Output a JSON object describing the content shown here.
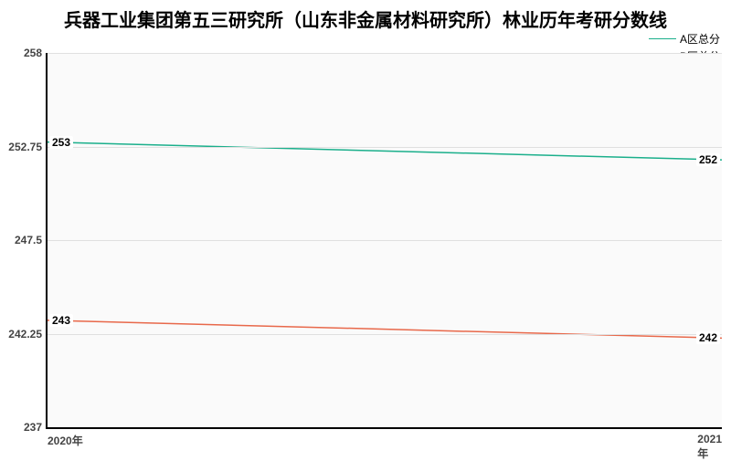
{
  "title": "兵器工业集团第五三研究所（山东非金属材料研究所）林业历年考研分数线",
  "title_fontsize": 20,
  "background_color": "#ffffff",
  "plot_background": "#fafafa",
  "axis_color": "#000000",
  "grid_color": "#e0e0e0",
  "text_color": "#444444",
  "x": {
    "categories": [
      "2020年",
      "2021年"
    ],
    "label_fontsize": 12
  },
  "y": {
    "min": 237,
    "max": 258,
    "ticks": [
      237,
      242.25,
      247.5,
      252.75,
      258
    ],
    "label_fontsize": 12
  },
  "series": [
    {
      "name": "A区总分",
      "color": "#1aaf8b",
      "line_width": 1.5,
      "values": [
        253,
        252
      ],
      "label_left": "253",
      "label_right": "252"
    },
    {
      "name": "B区总分",
      "color": "#e8684a",
      "line_width": 1.5,
      "values": [
        243,
        242
      ],
      "label_left": "243",
      "label_right": "242"
    }
  ],
  "legend": {
    "position": "top-right",
    "fontsize": 12
  }
}
